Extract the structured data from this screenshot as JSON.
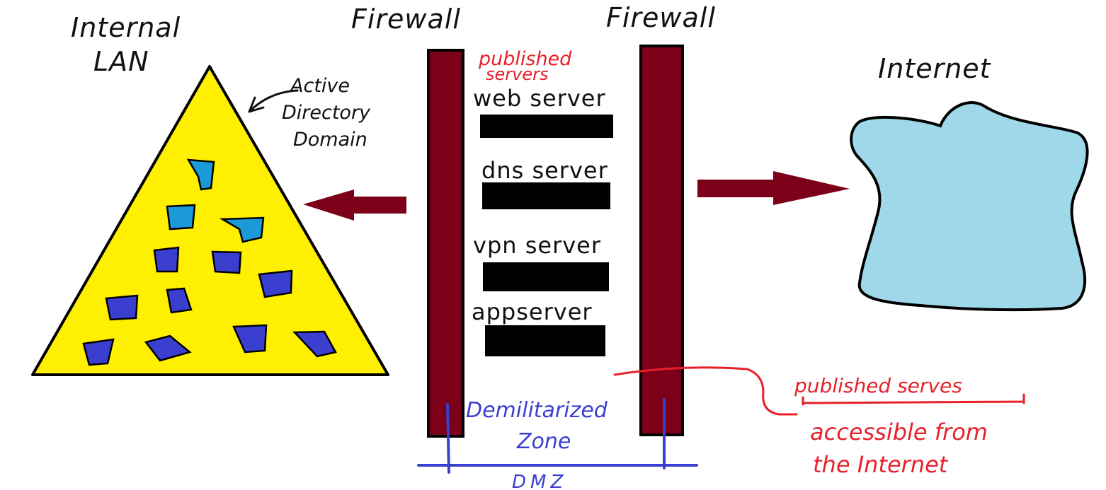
{
  "labels": {
    "internal_lan_line1": "Internal",
    "internal_lan_line2": "LAN",
    "firewall_left": "Firewall",
    "firewall_right": "Firewall",
    "internet": "Internet",
    "ad_line1": "Active",
    "ad_line2": "Directory",
    "ad_line3": "Domain",
    "published_line1": "published",
    "published_line2": "servers",
    "dmz_line1": "Demilitarized",
    "dmz_line2": "Zone",
    "dmz_short": "DMZ",
    "note_line1": "published serves",
    "note_line2": "accessible from",
    "note_line3": "the Internet"
  },
  "servers": [
    {
      "label": "web server"
    },
    {
      "label": "dns server"
    },
    {
      "label": "vpn server"
    },
    {
      "label": "appserver"
    }
  ],
  "colors": {
    "firewall": "#7d0019",
    "arrow": "#7d0019",
    "lan_triangle": "#ffef00",
    "internet_cloud": "#9fd8e8",
    "annotation_red": "#e8202a",
    "annotation_blue": "#3b3fd0",
    "server_box": "#000000"
  }
}
